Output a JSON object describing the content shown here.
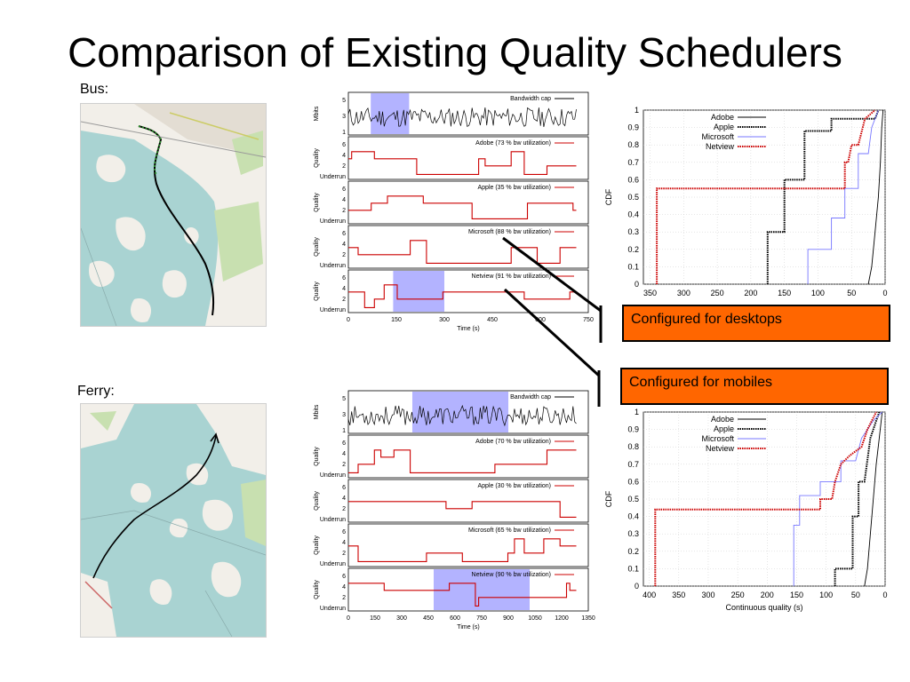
{
  "slide": {
    "title": "Comparison of Existing Quality Schedulers",
    "bus_label": "Bus:",
    "ferry_label": "Ferry:",
    "callout_desktop": "Configured for desktops",
    "callout_mobile": "Configured for mobiles"
  },
  "colors": {
    "sea": "#a9d3d2",
    "land": "#f2efe9",
    "park": "#c8e0b0",
    "highlight": "#9999ff",
    "red": "#cc0000",
    "orange": "#ff6600",
    "microsoft": "#7777ff"
  },
  "chart_data": [
    {
      "type": "line",
      "id": "bus_timeseries",
      "x_tick_labels": [
        "0",
        "150",
        "300",
        "450",
        "600",
        "750"
      ],
      "xlim": [
        0,
        750
      ],
      "xlabel": "Time (s)",
      "panels": [
        {
          "ylabel": "Mbits",
          "yticks": [
            "1",
            "3",
            "5"
          ],
          "legend": "Bandwidth cap",
          "series_color": "#000000",
          "highlight": [
            70,
            190
          ]
        },
        {
          "ylabel": "Quality",
          "yticks": [
            "Underrun",
            "2",
            "4",
            "6"
          ],
          "legend": "Adobe (73 % bw utilization)",
          "series_color": "#cc0000"
        },
        {
          "ylabel": "Quality",
          "yticks": [
            "Underrun",
            "2",
            "4",
            "6"
          ],
          "legend": "Apple (35 % bw utilization)",
          "series_color": "#cc0000"
        },
        {
          "ylabel": "Quality",
          "yticks": [
            "Underrun",
            "2",
            "4",
            "6"
          ],
          "legend": "Microsoft (88 % bw utilization)",
          "series_color": "#cc0000"
        },
        {
          "ylabel": "Quality",
          "yticks": [
            "Underrun",
            "2",
            "4",
            "6"
          ],
          "legend": "Netview (91 % bw utilization)",
          "series_color": "#cc0000",
          "highlight": [
            140,
            300
          ]
        }
      ]
    },
    {
      "type": "line",
      "id": "ferry_timeseries",
      "x_tick_labels": [
        "0",
        "150",
        "300",
        "450",
        "600",
        "750",
        "900",
        "1050",
        "1200",
        "1350"
      ],
      "xlim": [
        0,
        1350
      ],
      "xlabel": "Time (s)",
      "panels": [
        {
          "ylabel": "Mbits",
          "yticks": [
            "1",
            "3",
            "5"
          ],
          "legend": "Bandwidth cap",
          "series_color": "#000000",
          "highlight": [
            360,
            900
          ]
        },
        {
          "ylabel": "Quality",
          "yticks": [
            "Underrun",
            "2",
            "4",
            "6"
          ],
          "legend": "Adobe (70 % bw utilization)",
          "series_color": "#cc0000"
        },
        {
          "ylabel": "Quality",
          "yticks": [
            "Underrun",
            "2",
            "4",
            "6"
          ],
          "legend": "Apple (30 % bw utilization)",
          "series_color": "#cc0000"
        },
        {
          "ylabel": "Quality",
          "yticks": [
            "Underrun",
            "2",
            "4",
            "6"
          ],
          "legend": "Microsoft (65 % bw utilization)",
          "series_color": "#cc0000"
        },
        {
          "ylabel": "Quality",
          "yticks": [
            "Underrun",
            "2",
            "4",
            "6"
          ],
          "legend": "Netview (90 % bw utilization)",
          "series_color": "#cc0000",
          "highlight": [
            480,
            1020
          ]
        }
      ]
    },
    {
      "type": "line",
      "id": "bus_cdf",
      "ylabel": "CDF",
      "xlabel": "",
      "x_tick_labels": [
        "350",
        "300",
        "250",
        "200",
        "150",
        "100",
        "50",
        "0"
      ],
      "xlim": [
        360,
        0
      ],
      "y_tick_labels": [
        "0",
        "0.1",
        "0.2",
        "0.3",
        "0.4",
        "0.5",
        "0.6",
        "0.7",
        "0.8",
        "0.9",
        "1"
      ],
      "ylim": [
        0,
        1
      ],
      "grid": true,
      "legend_position": "top-left",
      "series": [
        {
          "name": "Adobe",
          "color": "#000000",
          "dash": "solid",
          "points": [
            [
              25,
              0
            ],
            [
              20,
              0.1
            ],
            [
              15,
              0.3
            ],
            [
              10,
              0.5
            ],
            [
              7,
              0.7
            ],
            [
              5,
              0.9
            ],
            [
              3,
              1
            ]
          ]
        },
        {
          "name": "Apple",
          "color": "#000000",
          "dash": "dotted",
          "points": [
            [
              175,
              0
            ],
            [
              175,
              0.3
            ],
            [
              150,
              0.3
            ],
            [
              150,
              0.6
            ],
            [
              120,
              0.6
            ],
            [
              120,
              0.88
            ],
            [
              80,
              0.88
            ],
            [
              80,
              0.95
            ],
            [
              15,
              0.95
            ],
            [
              10,
              1
            ]
          ]
        },
        {
          "name": "Microsoft",
          "color": "#7777ff",
          "dash": "solid",
          "points": [
            [
              115,
              0
            ],
            [
              115,
              0.2
            ],
            [
              80,
              0.2
            ],
            [
              80,
              0.38
            ],
            [
              60,
              0.38
            ],
            [
              60,
              0.55
            ],
            [
              40,
              0.55
            ],
            [
              40,
              0.75
            ],
            [
              25,
              0.75
            ],
            [
              20,
              0.9
            ],
            [
              10,
              1
            ]
          ]
        },
        {
          "name": "Netview",
          "color": "#cc0000",
          "dash": "dotted",
          "points": [
            [
              340,
              0
            ],
            [
              340,
              0.55
            ],
            [
              60,
              0.55
            ],
            [
              60,
              0.7
            ],
            [
              55,
              0.7
            ],
            [
              50,
              0.8
            ],
            [
              40,
              0.8
            ],
            [
              30,
              0.95
            ],
            [
              15,
              1
            ]
          ]
        }
      ]
    },
    {
      "type": "line",
      "id": "ferry_cdf",
      "ylabel": "CDF",
      "xlabel": "Continuous quality (s)",
      "x_tick_labels": [
        "400",
        "350",
        "300",
        "250",
        "200",
        "150",
        "100",
        "50",
        "0"
      ],
      "xlim": [
        410,
        0
      ],
      "y_tick_labels": [
        "0",
        "0.1",
        "0.2",
        "0.3",
        "0.4",
        "0.5",
        "0.6",
        "0.7",
        "0.8",
        "0.9",
        "1"
      ],
      "ylim": [
        0,
        1
      ],
      "grid": true,
      "legend_position": "top-left",
      "series": [
        {
          "name": "Adobe",
          "color": "#000000",
          "dash": "solid",
          "points": [
            [
              35,
              0
            ],
            [
              30,
              0.1
            ],
            [
              25,
              0.3
            ],
            [
              20,
              0.5
            ],
            [
              15,
              0.7
            ],
            [
              10,
              0.85
            ],
            [
              5,
              1
            ]
          ]
        },
        {
          "name": "Apple",
          "color": "#000000",
          "dash": "dotted",
          "points": [
            [
              85,
              0
            ],
            [
              85,
              0.1
            ],
            [
              55,
              0.1
            ],
            [
              55,
              0.4
            ],
            [
              45,
              0.4
            ],
            [
              45,
              0.6
            ],
            [
              35,
              0.6
            ],
            [
              25,
              0.85
            ],
            [
              15,
              0.95
            ],
            [
              10,
              1
            ]
          ]
        },
        {
          "name": "Microsoft",
          "color": "#7777ff",
          "dash": "solid",
          "points": [
            [
              155,
              0
            ],
            [
              155,
              0.35
            ],
            [
              145,
              0.35
            ],
            [
              145,
              0.52
            ],
            [
              110,
              0.52
            ],
            [
              110,
              0.6
            ],
            [
              75,
              0.6
            ],
            [
              75,
              0.72
            ],
            [
              50,
              0.72
            ],
            [
              40,
              0.85
            ],
            [
              20,
              0.95
            ],
            [
              5,
              1
            ]
          ]
        },
        {
          "name": "Netview",
          "color": "#cc0000",
          "dash": "dotted",
          "points": [
            [
              390,
              0
            ],
            [
              390,
              0.44
            ],
            [
              110,
              0.44
            ],
            [
              110,
              0.5
            ],
            [
              90,
              0.5
            ],
            [
              85,
              0.6
            ],
            [
              75,
              0.7
            ],
            [
              60,
              0.75
            ],
            [
              40,
              0.8
            ],
            [
              30,
              0.9
            ],
            [
              15,
              1
            ]
          ]
        }
      ]
    }
  ]
}
